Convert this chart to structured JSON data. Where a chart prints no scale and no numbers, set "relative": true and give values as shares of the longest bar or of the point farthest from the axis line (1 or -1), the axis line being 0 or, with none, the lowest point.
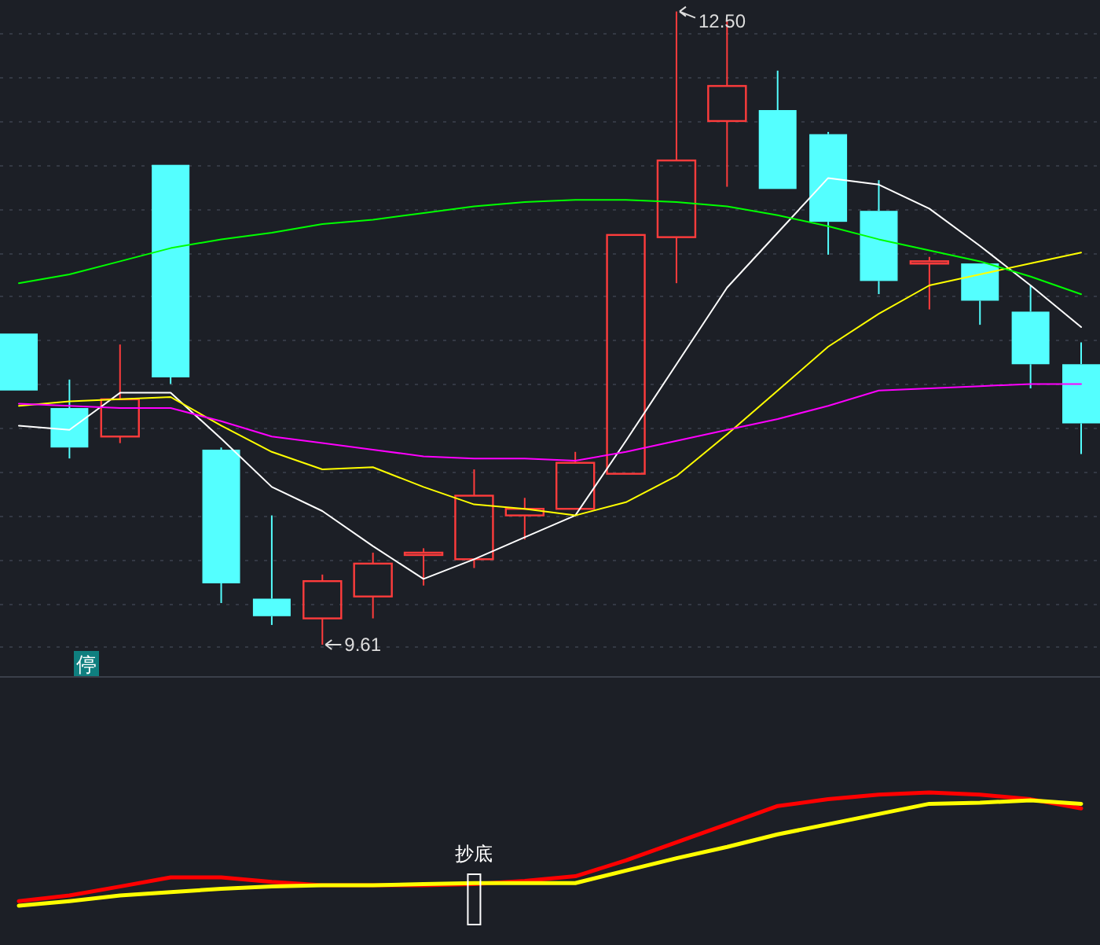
{
  "chart_data": [
    {
      "type": "candlestick",
      "categories": [
        null,
        null,
        null,
        null,
        null,
        null,
        null,
        null,
        null,
        null,
        null,
        null,
        null,
        null,
        null,
        null,
        null,
        null,
        null,
        null,
        null,
        null
      ],
      "ohlc": [
        [
          11.03,
          11.03,
          10.77,
          10.77
        ],
        [
          10.69,
          10.82,
          10.46,
          10.51
        ],
        [
          10.56,
          10.98,
          10.53,
          10.73
        ],
        [
          11.8,
          11.8,
          10.8,
          10.83
        ],
        [
          10.5,
          10.51,
          9.8,
          9.89
        ],
        [
          9.82,
          10.2,
          9.7,
          9.74
        ],
        [
          9.73,
          9.93,
          9.61,
          9.9
        ],
        [
          9.83,
          10.03,
          9.73,
          9.98
        ],
        [
          10.02,
          10.05,
          9.88,
          10.03
        ],
        [
          10.0,
          10.41,
          9.96,
          10.29
        ],
        [
          10.2,
          10.28,
          10.09,
          10.23
        ],
        [
          10.23,
          10.49,
          10.23,
          10.44
        ],
        [
          10.39,
          11.48,
          10.39,
          11.48
        ],
        [
          11.47,
          12.5,
          11.26,
          11.82
        ],
        [
          12.0,
          12.46,
          11.7,
          12.16
        ],
        [
          12.05,
          12.23,
          11.69,
          11.69
        ],
        [
          11.94,
          11.95,
          11.39,
          11.54
        ],
        [
          11.59,
          11.73,
          11.21,
          11.27
        ],
        [
          11.35,
          11.38,
          11.14,
          11.36
        ],
        [
          11.35,
          11.35,
          11.07,
          11.18
        ],
        [
          11.13,
          11.25,
          10.78,
          10.89
        ],
        [
          10.89,
          10.99,
          10.48,
          10.62
        ]
      ],
      "colors": [
        "#54ffff",
        "#54ffff",
        "#ff3c3c",
        "#54ffff",
        "#54ffff",
        "#54ffff",
        "#ff3c3c",
        "#ff3c3c",
        "#ff3c3c",
        "#ff3c3c",
        "#ff3c3c",
        "#ff3c3c",
        "#ff3c3c",
        "#ff3c3c",
        "#ff3c3c",
        "#54ffff",
        "#54ffff",
        "#54ffff",
        "#ff3c3c",
        "#54ffff",
        "#54ffff",
        "#54ffff"
      ],
      "series": [
        {
          "type": "line",
          "color": "#ffffff",
          "values": [
            10.61,
            10.59,
            10.76,
            10.76,
            10.55,
            10.33,
            10.22,
            10.06,
            9.91,
            10.0,
            10.1,
            10.2,
            10.54,
            10.89,
            11.24,
            11.49,
            11.74,
            11.71,
            11.6,
            11.43,
            11.25,
            11.06
          ]
        },
        {
          "type": "line",
          "color": "#ffff00",
          "values": [
            10.7,
            10.72,
            10.73,
            10.74,
            10.61,
            10.49,
            10.41,
            10.42,
            10.33,
            10.25,
            10.23,
            10.2,
            10.26,
            10.38,
            10.57,
            10.77,
            10.97,
            11.12,
            11.25,
            11.3,
            11.35,
            11.4
          ]
        },
        {
          "type": "line",
          "color": "#ff00ff",
          "values": [
            10.71,
            10.7,
            10.69,
            10.69,
            10.63,
            10.56,
            10.53,
            10.5,
            10.47,
            10.46,
            10.46,
            10.45,
            10.49,
            10.54,
            10.59,
            10.64,
            10.7,
            10.77,
            10.78,
            10.79,
            10.8,
            10.8
          ]
        },
        {
          "type": "line",
          "color": "#00ff00",
          "values": [
            11.26,
            11.3,
            11.36,
            11.42,
            11.46,
            11.49,
            11.53,
            11.55,
            11.58,
            11.61,
            11.63,
            11.64,
            11.64,
            11.63,
            11.61,
            11.57,
            11.52,
            11.46,
            11.41,
            11.36,
            11.29,
            11.21
          ]
        }
      ],
      "yticks": [
        {
          "value": 9.6,
          "label": null
        },
        {
          "value": 9.8,
          "label": null
        },
        {
          "value": 10.0,
          "label": null
        },
        {
          "value": 10.2,
          "label": null
        },
        {
          "value": 10.4,
          "label": null
        },
        {
          "value": 10.6,
          "label": null
        },
        {
          "value": 10.8,
          "label": null
        },
        {
          "value": 11.0,
          "label": null
        },
        {
          "value": 11.2,
          "label": null
        },
        {
          "value": 11.4,
          "label": null
        },
        {
          "value": 11.6,
          "label": null
        },
        {
          "value": 11.8,
          "label": null
        },
        {
          "value": 12.0,
          "label": null
        },
        {
          "value": 12.2,
          "label": null
        },
        {
          "value": 12.4,
          "label": null
        }
      ],
      "grid": "y",
      "annotations": [
        "12.50",
        "9.61",
        "停"
      ]
    },
    {
      "type": "line",
      "relative": true,
      "categories": [
        null,
        null,
        null,
        null,
        null,
        null,
        null,
        null,
        null,
        null,
        null,
        null,
        null,
        null,
        null,
        null,
        null,
        null,
        null,
        null,
        null,
        null
      ],
      "series": [
        {
          "color": "#ff0000",
          "values": [
            0.04,
            0.09,
            0.17,
            0.25,
            0.25,
            0.21,
            0.18,
            0.18,
            0.18,
            0.19,
            0.22,
            0.26,
            0.4,
            0.56,
            0.72,
            0.88,
            0.94,
            0.98,
            1.0,
            0.98,
            0.94,
            0.86
          ]
        },
        {
          "color": "#ffff00",
          "values": [
            0,
            0.04,
            0.09,
            0.12,
            0.15,
            0.17,
            0.18,
            0.18,
            0.19,
            0.2,
            0.2,
            0.2,
            0.31,
            0.42,
            0.52,
            0.63,
            0.72,
            0.81,
            0.9,
            0.91,
            0.93,
            0.9
          ]
        }
      ],
      "annotations": [
        "抄底"
      ]
    }
  ]
}
